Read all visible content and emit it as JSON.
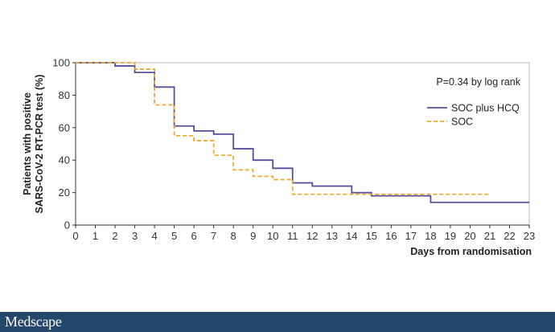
{
  "chart_data": {
    "type": "line",
    "step": true,
    "xlabel": "Days from randomisation",
    "ylabel": [
      "Patients with positive",
      "SARS-CoV-2 RT-PCR test (%)"
    ],
    "xlim": [
      0,
      23
    ],
    "ylim": [
      0,
      100
    ],
    "xticks": [
      0,
      1,
      2,
      3,
      4,
      5,
      6,
      7,
      8,
      9,
      10,
      11,
      12,
      13,
      14,
      15,
      16,
      17,
      18,
      19,
      20,
      21,
      22,
      23
    ],
    "yticks": [
      0,
      20,
      40,
      60,
      80,
      100
    ],
    "annotation": "P=0.34 by log rank",
    "legend_position": "top-right",
    "grid": false,
    "series": [
      {
        "name": "SOC plus HCQ",
        "color": "#5b4b9a",
        "dash": "solid",
        "x": [
          0,
          2,
          3,
          4,
          5,
          6,
          7,
          8,
          9,
          10,
          11,
          12,
          14,
          15,
          18,
          23
        ],
        "y": [
          100,
          98,
          94,
          85,
          61,
          58,
          56,
          47,
          40,
          35,
          26,
          24,
          20,
          18,
          14,
          14
        ]
      },
      {
        "name": "SOC",
        "color": "#f0a830",
        "dash": "dashed",
        "x": [
          0,
          2,
          3,
          4,
          5,
          6,
          7,
          8,
          9,
          10,
          11,
          21
        ],
        "y": [
          100,
          100,
          96,
          74,
          55,
          52,
          43,
          34,
          30,
          28,
          19,
          19
        ]
      }
    ]
  },
  "footer": {
    "brand": "Medscape",
    "bg_color": "#25476c"
  }
}
